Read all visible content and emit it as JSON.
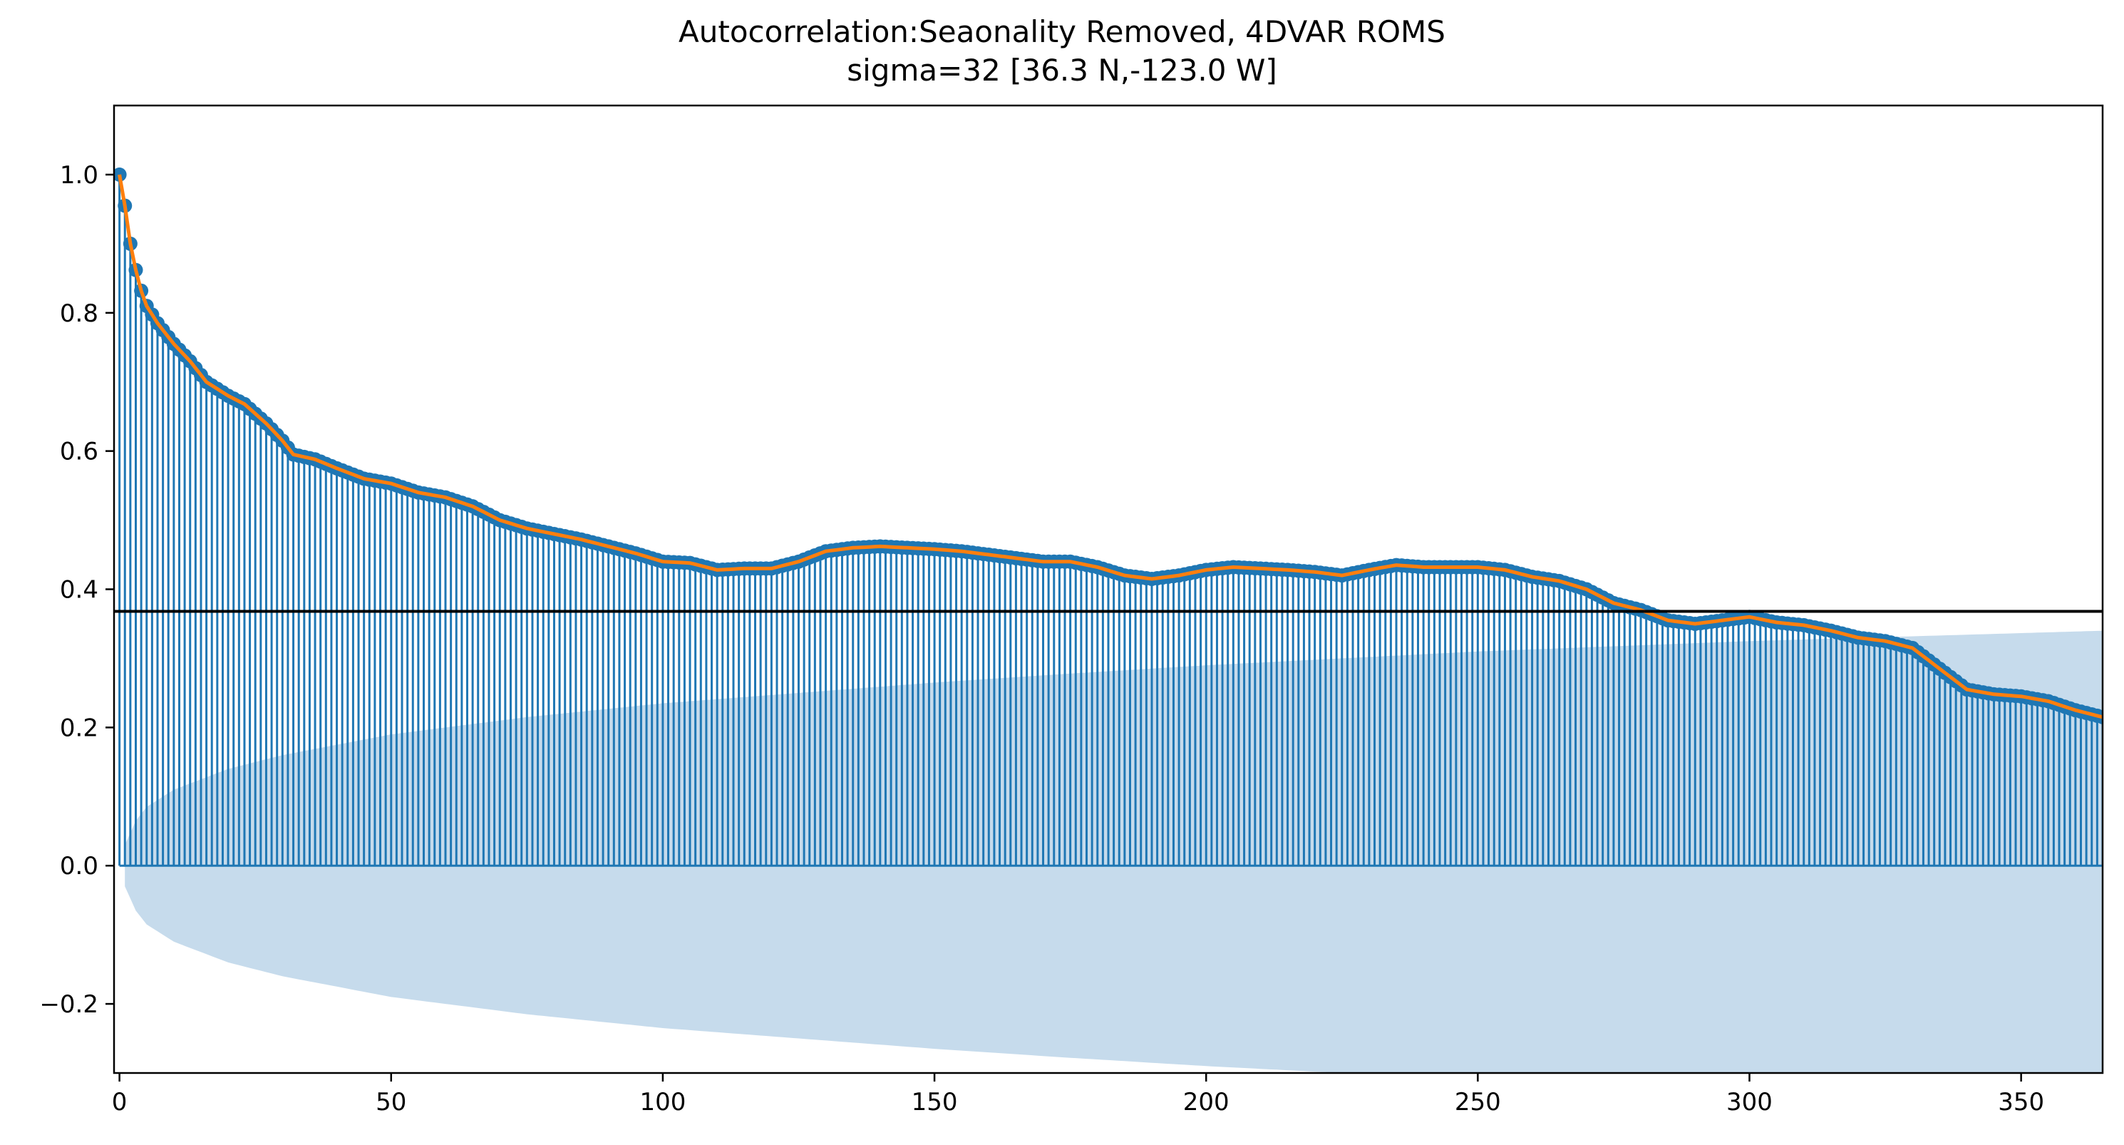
{
  "chart_data": {
    "type": "stem",
    "title": "Autocorrelation:Seaonality Removed, 4DVAR ROMS",
    "subtitle": "sigma=32 [36.3 N,-123.0 W]",
    "xlabel": "",
    "ylabel": "",
    "xlim": [
      -1,
      365
    ],
    "ylim": [
      -0.3,
      1.1
    ],
    "xticks": [
      0,
      50,
      100,
      150,
      200,
      250,
      300,
      350
    ],
    "yticks": [
      1.0,
      0.8,
      0.6,
      0.4,
      0.2,
      0.0,
      -0.2
    ],
    "ytick_labels": [
      "1.0",
      "0.8",
      "0.6",
      "0.4",
      "0.2",
      "0.0",
      "−0.2"
    ],
    "reference_line": 0.368,
    "lag_max": 365,
    "acf_anchors": [
      [
        0,
        1.0
      ],
      [
        1,
        0.955
      ],
      [
        2,
        0.9
      ],
      [
        3,
        0.862
      ],
      [
        4,
        0.832
      ],
      [
        5,
        0.81
      ],
      [
        7,
        0.785
      ],
      [
        10,
        0.755
      ],
      [
        13,
        0.73
      ],
      [
        16,
        0.7
      ],
      [
        20,
        0.68
      ],
      [
        23,
        0.668
      ],
      [
        27,
        0.64
      ],
      [
        30,
        0.615
      ],
      [
        32,
        0.595
      ],
      [
        36,
        0.588
      ],
      [
        40,
        0.575
      ],
      [
        45,
        0.56
      ],
      [
        50,
        0.553
      ],
      [
        55,
        0.54
      ],
      [
        60,
        0.533
      ],
      [
        65,
        0.52
      ],
      [
        70,
        0.5
      ],
      [
        75,
        0.488
      ],
      [
        80,
        0.48
      ],
      [
        85,
        0.472
      ],
      [
        90,
        0.462
      ],
      [
        95,
        0.452
      ],
      [
        100,
        0.44
      ],
      [
        105,
        0.438
      ],
      [
        110,
        0.428
      ],
      [
        115,
        0.43
      ],
      [
        120,
        0.43
      ],
      [
        125,
        0.44
      ],
      [
        130,
        0.455
      ],
      [
        135,
        0.46
      ],
      [
        140,
        0.462
      ],
      [
        145,
        0.46
      ],
      [
        150,
        0.458
      ],
      [
        155,
        0.455
      ],
      [
        160,
        0.45
      ],
      [
        165,
        0.445
      ],
      [
        170,
        0.44
      ],
      [
        175,
        0.44
      ],
      [
        180,
        0.432
      ],
      [
        185,
        0.42
      ],
      [
        190,
        0.415
      ],
      [
        195,
        0.42
      ],
      [
        200,
        0.428
      ],
      [
        205,
        0.432
      ],
      [
        210,
        0.43
      ],
      [
        215,
        0.428
      ],
      [
        220,
        0.425
      ],
      [
        225,
        0.42
      ],
      [
        230,
        0.428
      ],
      [
        235,
        0.435
      ],
      [
        240,
        0.432
      ],
      [
        245,
        0.432
      ],
      [
        250,
        0.432
      ],
      [
        255,
        0.428
      ],
      [
        260,
        0.418
      ],
      [
        265,
        0.412
      ],
      [
        270,
        0.4
      ],
      [
        275,
        0.38
      ],
      [
        280,
        0.37
      ],
      [
        285,
        0.355
      ],
      [
        290,
        0.35
      ],
      [
        295,
        0.355
      ],
      [
        300,
        0.36
      ],
      [
        305,
        0.352
      ],
      [
        310,
        0.348
      ],
      [
        315,
        0.34
      ],
      [
        320,
        0.33
      ],
      [
        325,
        0.325
      ],
      [
        330,
        0.315
      ],
      [
        335,
        0.285
      ],
      [
        340,
        0.255
      ],
      [
        345,
        0.248
      ],
      [
        350,
        0.245
      ],
      [
        355,
        0.238
      ],
      [
        360,
        0.225
      ],
      [
        365,
        0.215
      ]
    ],
    "confidence_band_lower": [
      [
        1,
        -0.03
      ],
      [
        3,
        -0.065
      ],
      [
        5,
        -0.085
      ],
      [
        10,
        -0.11
      ],
      [
        20,
        -0.14
      ],
      [
        30,
        -0.16
      ],
      [
        50,
        -0.19
      ],
      [
        75,
        -0.215
      ],
      [
        100,
        -0.235
      ],
      [
        125,
        -0.25
      ],
      [
        150,
        -0.265
      ],
      [
        175,
        -0.278
      ],
      [
        200,
        -0.29
      ],
      [
        225,
        -0.3
      ],
      [
        250,
        -0.31
      ],
      [
        300,
        -0.325
      ],
      [
        365,
        -0.34
      ]
    ],
    "colors": {
      "stem": "#1f77b4",
      "smooth_line": "#ff7f0e",
      "confidence_band": "#c6dbec",
      "reference_line": "#000000"
    }
  }
}
